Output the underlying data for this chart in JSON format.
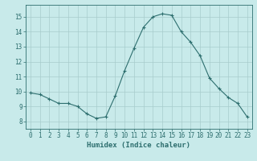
{
  "x": [
    0,
    1,
    2,
    3,
    4,
    5,
    6,
    7,
    8,
    9,
    10,
    11,
    12,
    13,
    14,
    15,
    16,
    17,
    18,
    19,
    20,
    21,
    22,
    23
  ],
  "y": [
    9.9,
    9.8,
    9.5,
    9.2,
    9.2,
    9.0,
    8.5,
    8.2,
    8.3,
    9.7,
    11.4,
    12.9,
    14.3,
    15.0,
    15.2,
    15.1,
    14.0,
    13.3,
    12.4,
    10.9,
    10.2,
    9.6,
    9.2,
    8.3
  ],
  "line_color": "#2d6e6e",
  "marker": "+",
  "marker_size": 3,
  "marker_linewidth": 0.8,
  "background_color": "#c8eaea",
  "grid_color": "#a8cccc",
  "xlabel": "Humidex (Indice chaleur)",
  "xlim": [
    -0.5,
    23.5
  ],
  "ylim": [
    7.5,
    15.8
  ],
  "yticks": [
    8,
    9,
    10,
    11,
    12,
    13,
    14,
    15
  ],
  "xticks": [
    0,
    1,
    2,
    3,
    4,
    5,
    6,
    7,
    8,
    9,
    10,
    11,
    12,
    13,
    14,
    15,
    16,
    17,
    18,
    19,
    20,
    21,
    22,
    23
  ],
  "tick_color": "#2d6e6e",
  "label_fontsize": 5.5,
  "xlabel_fontsize": 6.5,
  "linewidth": 0.8
}
